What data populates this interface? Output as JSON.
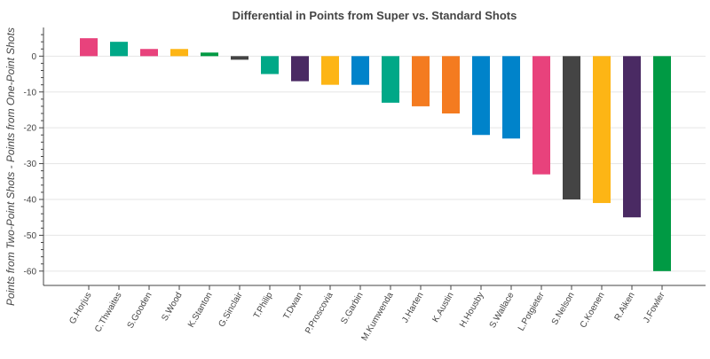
{
  "chart_data": {
    "type": "bar",
    "title": "Differential in Points from Super vs. Standard Shots",
    "xlabel": "",
    "ylabel": "Points from Two-Point Shots - Points from One-Point Shots",
    "ylim": [
      -64,
      8
    ],
    "yticks": [
      0,
      -10,
      -20,
      -30,
      -40,
      -50,
      -60
    ],
    "grid": "horizontal",
    "legend": "none",
    "categories": [
      "G.Horjus",
      "C.Thwaites",
      "S.Gooden",
      "S.Wood",
      "K.Stanton",
      "G.Sinclair",
      "T.Philip",
      "T.Dwan",
      "P.Proscovia",
      "S.Garbin",
      "M.Kumwenda",
      "J.Harten",
      "K.Austin",
      "H.Housby",
      "S.Wallace",
      "L.Potgieter",
      "S.Nelson",
      "C.Koenen",
      "R.Aiken",
      "J.Fowler"
    ],
    "values": [
      5,
      4,
      2,
      2,
      1,
      -1,
      -5,
      -7,
      -8,
      -8,
      -13,
      -14,
      -16,
      -22,
      -23,
      -33,
      -40,
      -41,
      -45,
      -60
    ],
    "colors": [
      "#e8427c",
      "#00a887",
      "#e8427c",
      "#fdb515",
      "#009a44",
      "#444444",
      "#00a887",
      "#4a2a63",
      "#fdb515",
      "#0083ca",
      "#00a887",
      "#f47b20",
      "#f47b20",
      "#0083ca",
      "#0083ca",
      "#e8427c",
      "#444444",
      "#fdb515",
      "#4a2a63",
      "#009a44"
    ]
  }
}
